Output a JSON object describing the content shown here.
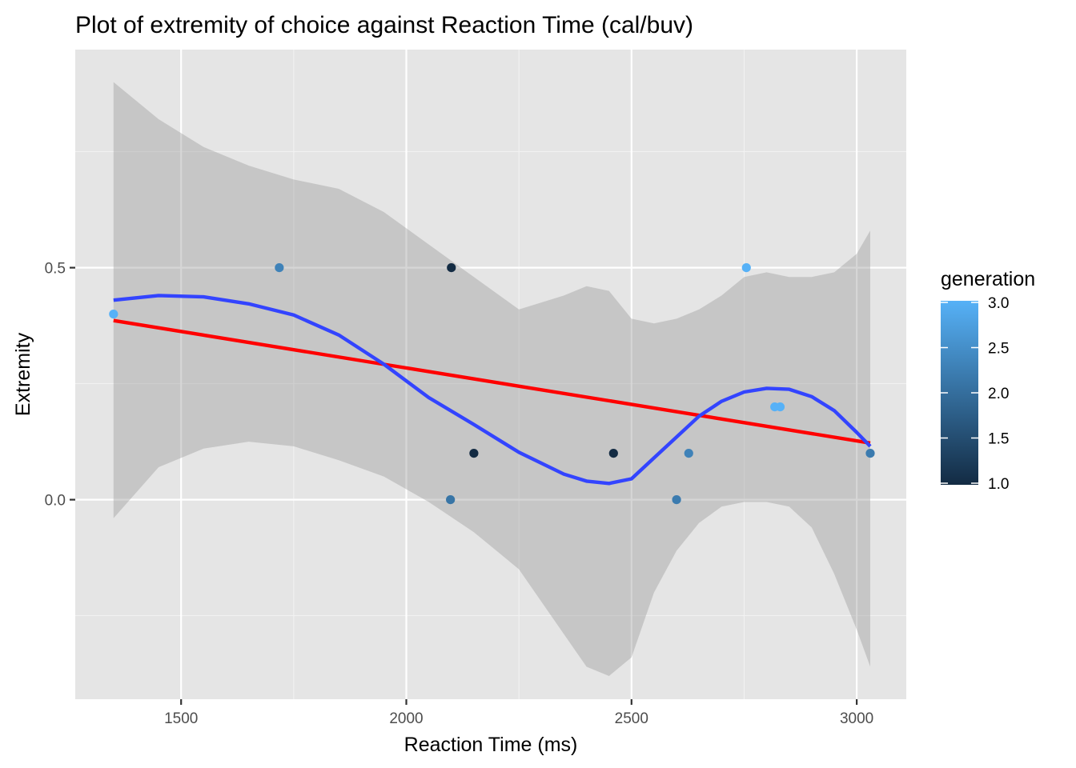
{
  "chart_data": {
    "type": "scatter",
    "title": "Plot of extremity of choice against Reaction Time (cal/buv)",
    "xlabel": "Reaction Time (ms)",
    "ylabel": "Extremity",
    "xlim": [
      1265,
      3110
    ],
    "ylim": [
      -0.43,
      0.97
    ],
    "x_ticks": [
      1500,
      2000,
      2500,
      3000
    ],
    "y_ticks": [
      0.0,
      0.5
    ],
    "x_tick_labels": [
      "1500",
      "2000",
      "2500",
      "3000"
    ],
    "y_tick_labels": [
      "0.0",
      "0.5"
    ],
    "grid": true,
    "background": "#e5e5e5",
    "points": [
      {
        "x": 1350,
        "y": 0.4,
        "generation": 3.0
      },
      {
        "x": 1718,
        "y": 0.5,
        "generation": 2.3
      },
      {
        "x": 2100,
        "y": 0.5,
        "generation": 1.0
      },
      {
        "x": 2098,
        "y": 0.0,
        "generation": 2.1
      },
      {
        "x": 2150,
        "y": 0.1,
        "generation": 1.0
      },
      {
        "x": 2460,
        "y": 0.1,
        "generation": 1.0
      },
      {
        "x": 2600,
        "y": 0.0,
        "generation": 2.2
      },
      {
        "x": 2627,
        "y": 0.1,
        "generation": 2.3
      },
      {
        "x": 2755,
        "y": 0.5,
        "generation": 3.0
      },
      {
        "x": 2818,
        "y": 0.2,
        "generation": 3.0
      },
      {
        "x": 2830,
        "y": 0.2,
        "generation": 3.0
      },
      {
        "x": 3030,
        "y": 0.1,
        "generation": 2.2
      }
    ],
    "series": [
      {
        "kind": "linear-fit",
        "color": "#ff0000",
        "x": [
          1350,
          3030
        ],
        "y": [
          0.386,
          0.122
        ]
      },
      {
        "kind": "loess-fit",
        "color": "#3344ff",
        "x": [
          1350,
          1450,
          1550,
          1650,
          1750,
          1850,
          1950,
          2050,
          2150,
          2250,
          2350,
          2400,
          2450,
          2500,
          2550,
          2600,
          2650,
          2700,
          2750,
          2800,
          2850,
          2900,
          2950,
          3000,
          3030
        ],
        "y": [
          0.43,
          0.44,
          0.437,
          0.422,
          0.398,
          0.355,
          0.292,
          0.22,
          0.162,
          0.102,
          0.055,
          0.04,
          0.035,
          0.045,
          0.09,
          0.135,
          0.18,
          0.212,
          0.232,
          0.24,
          0.238,
          0.222,
          0.192,
          0.145,
          0.115
        ]
      }
    ],
    "confidence_band": {
      "color": "#999999",
      "x": [
        1350,
        1450,
        1550,
        1650,
        1750,
        1850,
        1950,
        2050,
        2150,
        2250,
        2350,
        2400,
        2450,
        2500,
        2550,
        2600,
        2650,
        2700,
        2750,
        2800,
        2850,
        2900,
        2950,
        3000,
        3030
      ],
      "upper": [
        0.9,
        0.82,
        0.76,
        0.72,
        0.69,
        0.67,
        0.62,
        0.55,
        0.48,
        0.41,
        0.44,
        0.46,
        0.45,
        0.39,
        0.38,
        0.39,
        0.41,
        0.44,
        0.48,
        0.49,
        0.48,
        0.48,
        0.49,
        0.53,
        0.58
      ],
      "lower": [
        -0.04,
        0.07,
        0.11,
        0.125,
        0.115,
        0.085,
        0.05,
        -0.005,
        -0.07,
        -0.15,
        -0.29,
        -0.36,
        -0.38,
        -0.34,
        -0.2,
        -0.11,
        -0.05,
        -0.015,
        -0.005,
        -0.005,
        -0.015,
        -0.06,
        -0.16,
        -0.28,
        -0.36
      ]
    },
    "legend": {
      "title": "generation",
      "placement": "right",
      "range": [
        1.0,
        3.0
      ],
      "ticks": [
        1.0,
        1.5,
        2.0,
        2.5,
        3.0
      ],
      "tick_labels": [
        "1.0",
        "1.5",
        "2.0",
        "2.5",
        "3.0"
      ],
      "color_low": "#132b43",
      "color_high": "#56b1f7"
    }
  }
}
